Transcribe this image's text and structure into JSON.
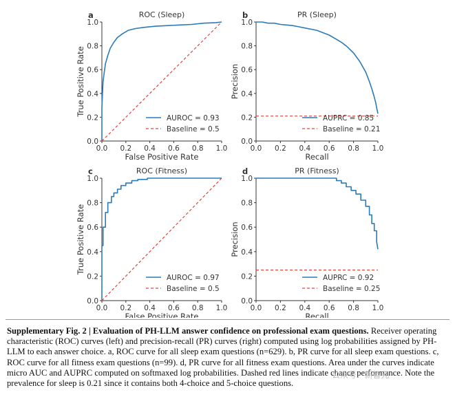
{
  "figure": {
    "panels": [
      {
        "letter": "a",
        "legend": [
          "AUROC = 0.93",
          "Baseline = 0.5"
        ]
      },
      {
        "letter": "b",
        "legend": [
          "AUPRC = 0.85",
          "Baseline = 0.21"
        ]
      },
      {
        "letter": "c",
        "legend": [
          "AUROC = 0.97",
          "Baseline = 0.5"
        ]
      },
      {
        "letter": "d",
        "legend": [
          "AUPRC = 0.92",
          "Baseline = 0.25"
        ]
      }
    ],
    "colors": {
      "curve": "#2a7ab8",
      "baseline": "#e0443c",
      "axis": "#333333"
    }
  },
  "chart_data": [
    {
      "type": "line",
      "title": "ROC (Sleep)",
      "xlabel": "False Positive Rate",
      "ylabel": "True Positive Rate",
      "xlim": [
        0,
        1
      ],
      "ylim": [
        0,
        1
      ],
      "xticks": [
        "0.0",
        "0.2",
        "0.4",
        "0.6",
        "0.8",
        "1.0"
      ],
      "yticks": [
        "0.0",
        "0.2",
        "0.4",
        "0.6",
        "0.8",
        "1.0"
      ],
      "legend_position": "bottom-right",
      "grid": false,
      "series": [
        {
          "name": "AUROC = 0.93",
          "style": "solid",
          "x": [
            0,
            0,
            0.005,
            0.01,
            0.02,
            0.03,
            0.05,
            0.07,
            0.1,
            0.13,
            0.17,
            0.22,
            0.28,
            0.35,
            0.45,
            0.55,
            0.65,
            0.75,
            0.85,
            0.95,
            1.0
          ],
          "y": [
            0,
            0.28,
            0.4,
            0.5,
            0.58,
            0.65,
            0.72,
            0.78,
            0.83,
            0.87,
            0.9,
            0.93,
            0.945,
            0.955,
            0.965,
            0.97,
            0.975,
            0.98,
            0.99,
            0.995,
            1.0
          ]
        },
        {
          "name": "Baseline = 0.5",
          "style": "dashed",
          "x": [
            0,
            1
          ],
          "y": [
            0,
            1
          ]
        }
      ]
    },
    {
      "type": "line",
      "title": "PR (Sleep)",
      "xlabel": "Recall",
      "ylabel": "Precision",
      "xlim": [
        0,
        1
      ],
      "ylim": [
        0,
        1
      ],
      "xticks": [
        "0.0",
        "0.2",
        "0.4",
        "0.6",
        "0.8",
        "1.0"
      ],
      "yticks": [
        "0.0",
        "0.2",
        "0.4",
        "0.6",
        "0.8",
        "1.0"
      ],
      "legend_position": "bottom-right",
      "grid": false,
      "series": [
        {
          "name": "AUPRC = 0.85",
          "style": "solid",
          "x": [
            0,
            0.05,
            0.1,
            0.15,
            0.2,
            0.25,
            0.3,
            0.35,
            0.4,
            0.45,
            0.5,
            0.55,
            0.6,
            0.65,
            0.7,
            0.75,
            0.8,
            0.85,
            0.9,
            0.93,
            0.95,
            0.97,
            0.98,
            0.99,
            1.0
          ],
          "y": [
            1.0,
            1.0,
            0.99,
            0.99,
            0.98,
            0.975,
            0.97,
            0.96,
            0.95,
            0.94,
            0.93,
            0.91,
            0.89,
            0.86,
            0.83,
            0.79,
            0.74,
            0.67,
            0.58,
            0.5,
            0.44,
            0.37,
            0.33,
            0.28,
            0.23
          ]
        },
        {
          "name": "Baseline = 0.21",
          "style": "dashed",
          "x": [
            0,
            1
          ],
          "y": [
            0.21,
            0.21
          ]
        }
      ]
    },
    {
      "type": "line",
      "title": "ROC (Fitness)",
      "xlabel": "False Positive Rate",
      "ylabel": "True Positive Rate",
      "xlim": [
        0,
        1
      ],
      "ylim": [
        0,
        1
      ],
      "xticks": [
        "0.0",
        "0.2",
        "0.4",
        "0.6",
        "0.8",
        "1.0"
      ],
      "yticks": [
        "0.0",
        "0.2",
        "0.4",
        "0.6",
        "0.8",
        "1.0"
      ],
      "legend_position": "bottom-right",
      "grid": false,
      "series": [
        {
          "name": "AUROC = 0.97",
          "style": "solid",
          "x": [
            0,
            0,
            0.01,
            0.01,
            0.03,
            0.03,
            0.05,
            0.05,
            0.08,
            0.08,
            0.1,
            0.1,
            0.13,
            0.13,
            0.16,
            0.16,
            0.2,
            0.2,
            0.25,
            0.25,
            0.3,
            0.3,
            0.38,
            0.38,
            1.0
          ],
          "y": [
            0,
            0.45,
            0.45,
            0.6,
            0.6,
            0.72,
            0.72,
            0.8,
            0.8,
            0.85,
            0.85,
            0.88,
            0.88,
            0.91,
            0.91,
            0.94,
            0.94,
            0.96,
            0.96,
            0.98,
            0.98,
            0.99,
            0.99,
            1.0,
            1.0
          ]
        },
        {
          "name": "Baseline = 0.5",
          "style": "dashed",
          "x": [
            0,
            1
          ],
          "y": [
            0,
            1
          ]
        }
      ]
    },
    {
      "type": "line",
      "title": "PR (Fitness)",
      "xlabel": "Recall",
      "ylabel": "Precision",
      "xlim": [
        0,
        1
      ],
      "ylim": [
        0,
        1
      ],
      "xticks": [
        "0.0",
        "0.2",
        "0.4",
        "0.6",
        "0.8",
        "1.0"
      ],
      "yticks": [
        "0.0",
        "0.2",
        "0.4",
        "0.6",
        "0.8",
        "1.0"
      ],
      "legend_position": "bottom-right",
      "grid": false,
      "series": [
        {
          "name": "AUPRC = 0.92",
          "style": "solid",
          "x": [
            0,
            0.6,
            0.66,
            0.66,
            0.7,
            0.7,
            0.74,
            0.74,
            0.78,
            0.78,
            0.82,
            0.82,
            0.86,
            0.86,
            0.9,
            0.9,
            0.93,
            0.93,
            0.95,
            0.95,
            0.97,
            0.97,
            0.99,
            0.99,
            1.0
          ],
          "y": [
            1.0,
            1.0,
            1.0,
            0.98,
            0.98,
            0.96,
            0.96,
            0.93,
            0.93,
            0.9,
            0.9,
            0.87,
            0.87,
            0.82,
            0.82,
            0.77,
            0.77,
            0.7,
            0.7,
            0.63,
            0.63,
            0.57,
            0.57,
            0.48,
            0.42
          ]
        },
        {
          "name": "Baseline = 0.25",
          "style": "dashed",
          "x": [
            0,
            1
          ],
          "y": [
            0.25,
            0.25
          ]
        }
      ]
    }
  ],
  "caption": {
    "title": "Supplementary Fig. 2 | Evaluation of PH-LLM answer confidence on professional exam questions.",
    "body": "Receiver operating characteristic (ROC) curves (left) and precision-recall (PR) curves (right) computed using log probabilities assigned by PH-LLM to each answer choice. a, ROC curve for all sleep exam questions (n=629). b, PR curve for all sleep exam questions. c, ROC curve for all fitness exam questions (n=99). d, PR curve for all fitness exam questions. Area under the curves indicate micro AUC and AUPRC computed on softmaxed log probabilities. Dashed red lines indicate chance performance. Note the prevalence for sleep is 0.21 since it contains both 4-choice and 5-choice questions."
  },
  "watermark": "公众号 · 新智元"
}
